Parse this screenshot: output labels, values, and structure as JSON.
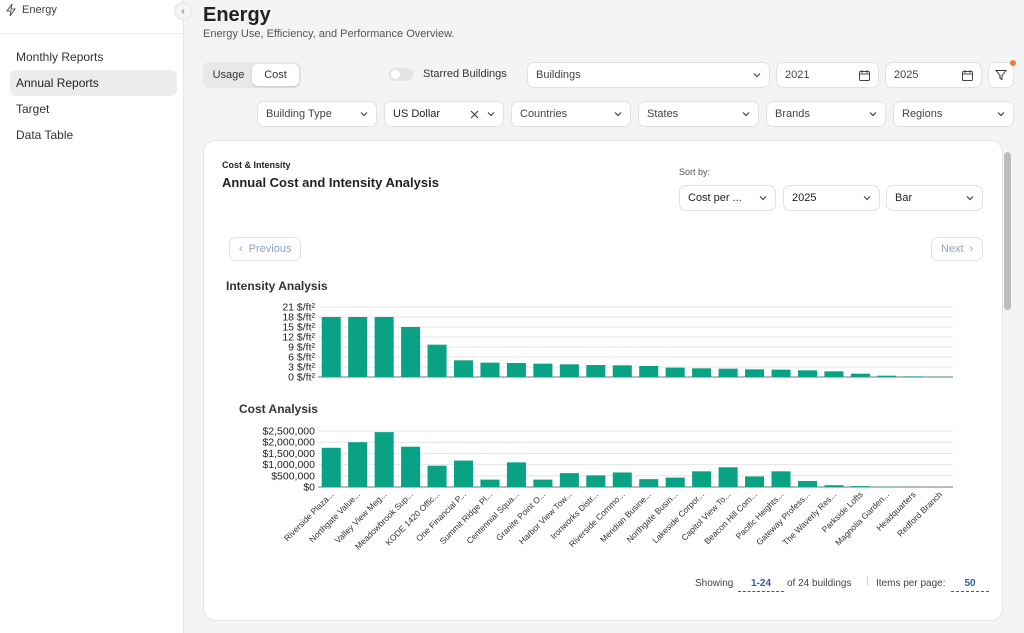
{
  "app": {
    "name": "Energy"
  },
  "sidebar": {
    "items": [
      {
        "label": "Monthly Reports",
        "active": false
      },
      {
        "label": "Annual Reports",
        "active": true
      },
      {
        "label": "Target",
        "active": false
      },
      {
        "label": "Data Table",
        "active": false
      }
    ]
  },
  "header": {
    "title": "Energy",
    "subtitle": "Energy Use, Efficiency, and Performance Overview."
  },
  "filters": {
    "mode_tabs": [
      "Usage",
      "Cost"
    ],
    "active_mode": "Cost",
    "starred_label": "Starred Buildings",
    "buildings": "Buildings",
    "start_year": "2021",
    "end_year": "2025",
    "building_type": "Building Type",
    "currency": "US Dollar",
    "countries": "Countries",
    "states": "States",
    "brands": "Brands",
    "regions": "Regions"
  },
  "card": {
    "kicker": "Cost & Intensity",
    "title": "Annual Cost and Intensity Analysis",
    "sort_by_label": "Sort by:",
    "sort_field": "Cost per ...",
    "sort_year": "2025",
    "chart_type": "Bar",
    "prev_label": "Previous",
    "next_label": "Next",
    "intensity_title": "Intensity Analysis",
    "cost_title": "Cost Analysis"
  },
  "pagination": {
    "showing_label": "Showing",
    "range": "1-24",
    "of_label": "of 24 buildings",
    "per_page_label": "Items per page:",
    "per_page": "50"
  },
  "colors": {
    "bar": "#0aa284",
    "accent": "#2f5ea8",
    "badge": "#f07c34"
  },
  "chart_data": [
    {
      "type": "bar",
      "title": "Intensity Analysis",
      "categories": [
        "Riverside Plaza...",
        "Northgate Value...",
        "Valley View Meg...",
        "Meadowbrook Sup...",
        "KODE 1420 Offic...",
        "One Financial P...",
        "Summit Ridge Pl...",
        "Centennial Squa...",
        "Granite Point O...",
        "Harbor View Tow...",
        "Ironworks Distr...",
        "Riverside Commo...",
        "Meridian Busine...",
        "Northgate Busin...",
        "Lakeside Corpor...",
        "Capitol View To...",
        "Beacon Hill Com...",
        "Pacific Heights...",
        "Gateway Profess...",
        "The Waverly Res...",
        "Parkside Lofts",
        "Magnolia Garden...",
        "Headquarters",
        "Redford Branch"
      ],
      "values": [
        18,
        18,
        18,
        15,
        9.7,
        5,
        4.3,
        4.2,
        4,
        3.8,
        3.6,
        3.5,
        3.3,
        2.8,
        2.6,
        2.5,
        2.3,
        2.2,
        2,
        1.7,
        1,
        0.4,
        0.2,
        0.1
      ],
      "y_ticks": [
        "0 $/ft²",
        "3 $/ft²",
        "6 $/ft²",
        "9 $/ft²",
        "12 $/ft²",
        "15 $/ft²",
        "18 $/ft²",
        "21 $/ft²"
      ],
      "ylim": [
        0,
        21
      ]
    },
    {
      "type": "bar",
      "title": "Cost Analysis",
      "categories": [
        "Riverside Plaza...",
        "Northgate Value...",
        "Valley View Meg...",
        "Meadowbrook Sup...",
        "KODE 1420 Offic...",
        "One Financial P...",
        "Summit Ridge Pl...",
        "Centennial Squa...",
        "Granite Point O...",
        "Harbor View Tow...",
        "Ironworks Distr...",
        "Riverside Commo...",
        "Meridian Busine...",
        "Northgate Busin...",
        "Lakeside Corpor...",
        "Capitol View To...",
        "Beacon Hill Com...",
        "Pacific Heights...",
        "Gateway Profess...",
        "The Waverly Res...",
        "Parkside Lofts",
        "Magnolia Garden...",
        "Headquarters",
        "Redford Branch"
      ],
      "values": [
        1750000,
        2000000,
        2450000,
        1800000,
        950000,
        1180000,
        330000,
        1100000,
        330000,
        620000,
        520000,
        650000,
        350000,
        420000,
        700000,
        880000,
        470000,
        700000,
        270000,
        80000,
        40000,
        15000,
        8000,
        4000
      ],
      "y_ticks": [
        "$0",
        "$500,000",
        "$1,000,000",
        "$1,500,000",
        "$2,000,000",
        "$2,500,000"
      ],
      "ylim": [
        0,
        2500000
      ]
    }
  ]
}
